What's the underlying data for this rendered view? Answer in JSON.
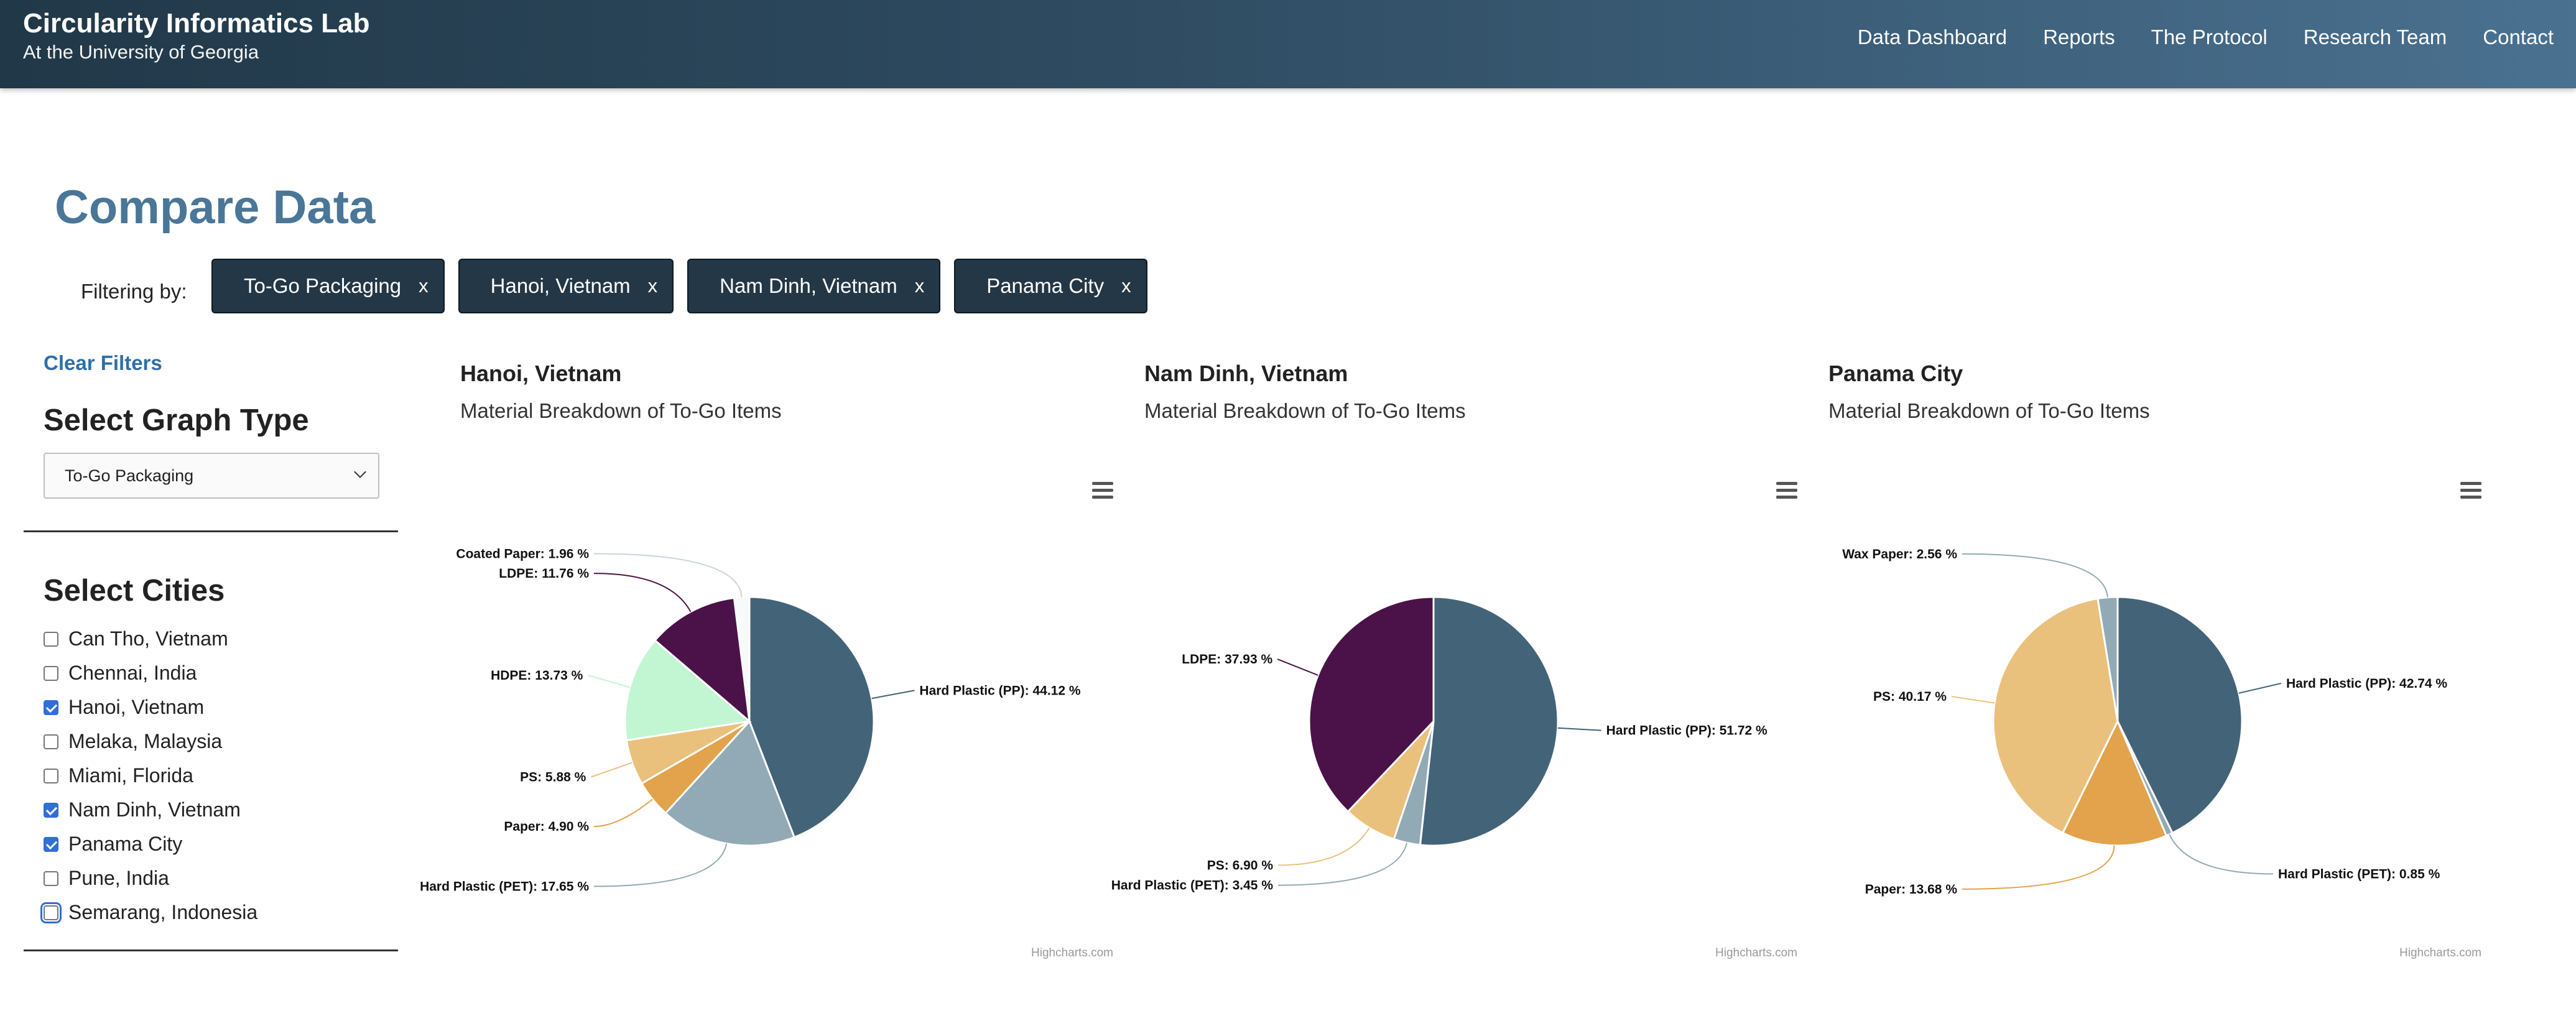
{
  "header": {
    "title": "Circularity Informatics Lab",
    "subtitle": "At the University of Georgia",
    "nav": [
      "Data Dashboard",
      "Reports",
      "The Protocol",
      "Research Team",
      "Contact"
    ]
  },
  "page": {
    "title": "Compare Data",
    "filter_label": "Filtering by:",
    "filters": [
      "To-Go Packaging",
      "Hanoi, Vietnam",
      "Nam Dinh, Vietnam",
      "Panama City"
    ],
    "remove_glyph": "x"
  },
  "sidebar": {
    "clear_filters": "Clear Filters",
    "graph_type_heading": "Select Graph Type",
    "graph_type_selected": "To-Go Packaging",
    "cities_heading": "Select Cities",
    "cities": [
      {
        "label": "Can Tho, Vietnam",
        "checked": false
      },
      {
        "label": "Chennai, India",
        "checked": false
      },
      {
        "label": "Hanoi, Vietnam",
        "checked": true
      },
      {
        "label": "Melaka, Malaysia",
        "checked": false
      },
      {
        "label": "Miami, Florida",
        "checked": false
      },
      {
        "label": "Nam Dinh, Vietnam",
        "checked": true
      },
      {
        "label": "Panama City",
        "checked": true
      },
      {
        "label": "Pune, India",
        "checked": false
      },
      {
        "label": "Semarang, Indonesia",
        "checked": false,
        "focused": true
      }
    ]
  },
  "colors": {
    "accent": "#4a7698",
    "link": "#2e6fa8",
    "chip_bg": "#243746",
    "header_start": "#213848",
    "header_end": "#4a7190"
  },
  "icons": {
    "chart_menu": "hamburger-menu-icon",
    "dropdown": "chevron-down-icon"
  },
  "chart_data": [
    {
      "type": "pie",
      "city": "Hanoi, Vietnam",
      "title": "Material Breakdown of To-Go Items",
      "credits": "Highcharts.com",
      "slices": [
        {
          "name": "Hard Plastic (PP)",
          "value": 44.12,
          "label": "Hard Plastic (PP): 44.12 %",
          "color": "#436378"
        },
        {
          "name": "Hard Plastic (PET)",
          "value": 17.65,
          "label": "Hard Plastic (PET): 17.65 %",
          "color": "#92aab5"
        },
        {
          "name": "Paper",
          "value": 4.9,
          "label": "Paper: 4.90 %",
          "color": "#e3a24c"
        },
        {
          "name": "PS",
          "value": 5.88,
          "label": "PS: 5.88 %",
          "color": "#eac17c"
        },
        {
          "name": "HDPE",
          "value": 13.73,
          "label": "HDPE: 13.73 %",
          "color": "#c2f6d3"
        },
        {
          "name": "LDPE",
          "value": 11.76,
          "label": "LDPE: 11.76 %",
          "color": "#4b1249"
        },
        {
          "name": "Coated Paper",
          "value": 1.96,
          "label": "Coated Paper: 1.96 %",
          "color": "#f7f9fb"
        }
      ]
    },
    {
      "type": "pie",
      "city": "Nam Dinh, Vietnam",
      "title": "Material Breakdown of To-Go Items",
      "credits": "Highcharts.com",
      "slices": [
        {
          "name": "Hard Plastic (PP)",
          "value": 51.72,
          "label": "Hard Plastic (PP): 51.72 %",
          "color": "#436378"
        },
        {
          "name": "Hard Plastic (PET)",
          "value": 3.45,
          "label": "Hard Plastic (PET): 3.45 %",
          "color": "#92aab5"
        },
        {
          "name": "PS",
          "value": 6.9,
          "label": "PS: 6.90 %",
          "color": "#eac17c"
        },
        {
          "name": "LDPE",
          "value": 37.93,
          "label": "LDPE: 37.93 %",
          "color": "#4b1249"
        }
      ]
    },
    {
      "type": "pie",
      "city": "Panama City",
      "title": "Material Breakdown of To-Go Items",
      "credits": "Highcharts.com",
      "slices": [
        {
          "name": "Hard Plastic (PP)",
          "value": 42.74,
          "label": "Hard Plastic (PP): 42.74 %",
          "color": "#436378"
        },
        {
          "name": "Hard Plastic (PET)",
          "value": 0.85,
          "label": "Hard Plastic (PET): 0.85 %",
          "color": "#92aab5"
        },
        {
          "name": "Paper",
          "value": 13.68,
          "label": "Paper: 13.68 %",
          "color": "#e3a24c"
        },
        {
          "name": "PS",
          "value": 40.17,
          "label": "PS: 40.17 %",
          "color": "#eac17c"
        },
        {
          "name": "Wax Paper",
          "value": 2.56,
          "label": "Wax Paper: 2.56 %",
          "color": "#92aab5"
        }
      ]
    }
  ]
}
